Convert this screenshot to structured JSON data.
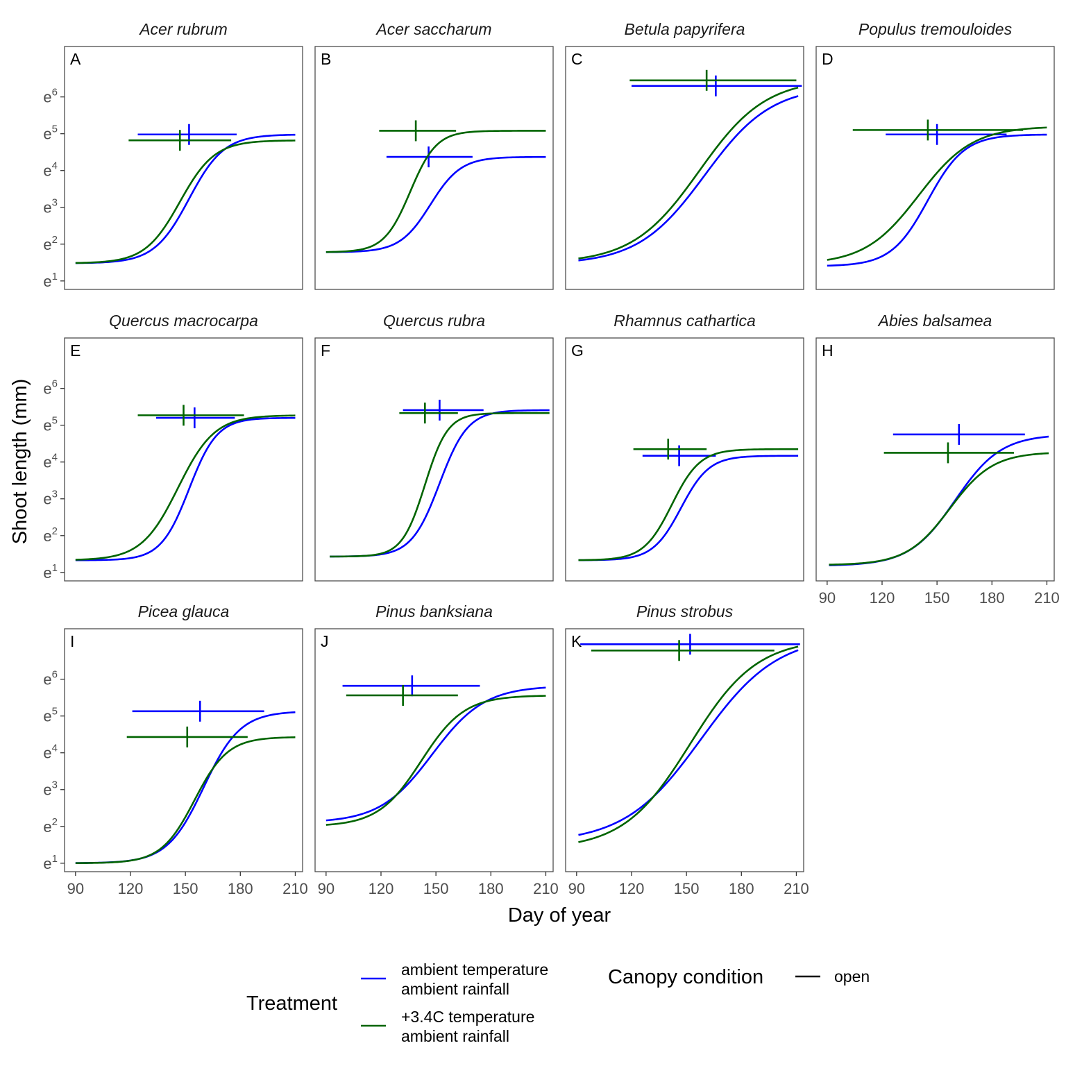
{
  "chart_data": {
    "type": "line",
    "xlabel": "Day of year",
    "ylabel": "Shoot length (mm)",
    "x_ticks": [
      90,
      120,
      150,
      180,
      210
    ],
    "xlim": [
      84,
      214
    ],
    "y_ticks": [
      {
        "base": "e",
        "exp": "1",
        "value": 1
      },
      {
        "base": "e",
        "exp": "2",
        "value": 2
      },
      {
        "base": "e",
        "exp": "3",
        "value": 3
      },
      {
        "base": "e",
        "exp": "4",
        "value": 4
      },
      {
        "base": "e",
        "exp": "5",
        "value": 5
      },
      {
        "base": "e",
        "exp": "6",
        "value": 6
      }
    ],
    "ylim_log": [
      0.77,
      7.37
    ],
    "colors": {
      "ambient": "#0000ff",
      "warm": "#006400"
    },
    "legend": {
      "treatment_title": "Treatment",
      "treatment_items": [
        {
          "key": "ambient",
          "line1": "ambient temperature",
          "line2": "ambient rainfall"
        },
        {
          "key": "warm",
          "line1": "+3.4C temperature",
          "line2": "ambient rainfall"
        }
      ],
      "canopy_title": "Canopy condition",
      "canopy_items": [
        {
          "label": "open",
          "color": "#000000"
        }
      ]
    },
    "panels": [
      {
        "letter": "A",
        "species": "Acer rubrum",
        "show_x_axis": false,
        "series": [
          {
            "key": "ambient",
            "x0": 90,
            "x1": 210,
            "y_start_log": 1.48,
            "y_end_log": 4.98,
            "midpoint": 152,
            "rate": 0.105,
            "mean": 152,
            "xmin": 124,
            "xmax": 178,
            "mean_y_log": 4.98
          },
          {
            "key": "warm",
            "x0": 90,
            "x1": 210,
            "y_start_log": 1.48,
            "y_end_log": 4.82,
            "midpoint": 147,
            "rate": 0.105,
            "mean": 147,
            "xmin": 119,
            "xmax": 175,
            "mean_y_log": 4.82
          }
        ]
      },
      {
        "letter": "B",
        "species": "Acer saccharum",
        "show_x_axis": false,
        "series": [
          {
            "key": "ambient",
            "x0": 90,
            "x1": 210,
            "y_start_log": 1.78,
            "y_end_log": 4.37,
            "midpoint": 147,
            "rate": 0.12,
            "mean": 146,
            "xmin": 123,
            "xmax": 170,
            "mean_y_log": 4.37
          },
          {
            "key": "warm",
            "x0": 90,
            "x1": 210,
            "y_start_log": 1.78,
            "y_end_log": 5.08,
            "midpoint": 136,
            "rate": 0.14,
            "mean": 139,
            "xmin": 119,
            "xmax": 161,
            "mean_y_log": 5.08
          }
        ]
      },
      {
        "letter": "C",
        "species": "Betula papyrifera",
        "show_x_axis": false,
        "series": [
          {
            "key": "ambient",
            "x0": 91,
            "x1": 211,
            "y_start_log": 1.45,
            "y_end_log": 6.3,
            "midpoint": 160,
            "rate": 0.055,
            "mean": 166,
            "xmin": 120,
            "xmax": 213,
            "mean_y_log": 6.3
          },
          {
            "key": "warm",
            "x0": 91,
            "x1": 211,
            "y_start_log": 1.48,
            "y_end_log": 6.5,
            "midpoint": 157,
            "rate": 0.055,
            "mean": 161,
            "xmin": 119,
            "xmax": 210,
            "mean_y_log": 6.45
          }
        ]
      },
      {
        "letter": "D",
        "species": "Populus tremouloides",
        "show_x_axis": false,
        "series": [
          {
            "key": "ambient",
            "x0": 90,
            "x1": 210,
            "y_start_log": 1.4,
            "y_end_log": 4.98,
            "midpoint": 145,
            "rate": 0.1,
            "mean": 150,
            "xmin": 122,
            "xmax": 188,
            "mean_y_log": 4.98
          },
          {
            "key": "warm",
            "x0": 90,
            "x1": 210,
            "y_start_log": 1.45,
            "y_end_log": 5.2,
            "midpoint": 140,
            "rate": 0.068,
            "mean": 145,
            "xmin": 104,
            "xmax": 197,
            "mean_y_log": 5.1
          }
        ]
      },
      {
        "letter": "E",
        "species": "Quercus macrocarpa",
        "show_x_axis": false,
        "series": [
          {
            "key": "ambient",
            "x0": 90,
            "x1": 210,
            "y_start_log": 1.33,
            "y_end_log": 5.2,
            "midpoint": 152,
            "rate": 0.13,
            "mean": 155,
            "xmin": 134,
            "xmax": 177,
            "mean_y_log": 5.2
          },
          {
            "key": "warm",
            "x0": 90,
            "x1": 210,
            "y_start_log": 1.33,
            "y_end_log": 5.27,
            "midpoint": 146,
            "rate": 0.1,
            "mean": 149,
            "xmin": 124,
            "xmax": 182,
            "mean_y_log": 5.27
          }
        ]
      },
      {
        "letter": "F",
        "species": "Quercus rubra",
        "show_x_axis": false,
        "series": [
          {
            "key": "ambient",
            "x0": 92,
            "x1": 212,
            "y_start_log": 1.43,
            "y_end_log": 5.41,
            "midpoint": 152,
            "rate": 0.13,
            "mean": 152,
            "xmin": 132,
            "xmax": 176,
            "mean_y_log": 5.41
          },
          {
            "key": "warm",
            "x0": 92,
            "x1": 212,
            "y_start_log": 1.43,
            "y_end_log": 5.33,
            "midpoint": 144,
            "rate": 0.16,
            "mean": 144,
            "xmin": 130,
            "xmax": 162,
            "mean_y_log": 5.33
          }
        ]
      },
      {
        "letter": "G",
        "species": "Rhamnus cathartica",
        "show_x_axis": false,
        "series": [
          {
            "key": "ambient",
            "x0": 91,
            "x1": 211,
            "y_start_log": 1.33,
            "y_end_log": 4.17,
            "midpoint": 147,
            "rate": 0.13,
            "mean": 146,
            "xmin": 126,
            "xmax": 166,
            "mean_y_log": 4.17
          },
          {
            "key": "warm",
            "x0": 91,
            "x1": 211,
            "y_start_log": 1.33,
            "y_end_log": 4.35,
            "midpoint": 142,
            "rate": 0.13,
            "mean": 140,
            "xmin": 121,
            "xmax": 161,
            "mean_y_log": 4.35
          }
        ]
      },
      {
        "letter": "H",
        "species": "Abies balsamea",
        "show_x_axis": true,
        "series": [
          {
            "key": "ambient",
            "x0": 91,
            "x1": 211,
            "y_start_log": 1.18,
            "y_end_log": 4.75,
            "midpoint": 160,
            "rate": 0.08,
            "mean": 162,
            "xmin": 126,
            "xmax": 198,
            "mean_y_log": 4.75
          },
          {
            "key": "warm",
            "x0": 91,
            "x1": 211,
            "y_start_log": 1.2,
            "y_end_log": 4.27,
            "midpoint": 157,
            "rate": 0.085,
            "mean": 156,
            "xmin": 121,
            "xmax": 192,
            "mean_y_log": 4.25
          }
        ]
      },
      {
        "letter": "I",
        "species": "Picea glauca",
        "show_x_axis": true,
        "series": [
          {
            "key": "ambient",
            "x0": 90,
            "x1": 210,
            "y_start_log": 1.0,
            "y_end_log": 5.13,
            "midpoint": 160,
            "rate": 0.1,
            "mean": 158,
            "xmin": 121,
            "xmax": 193,
            "mean_y_log": 5.13
          },
          {
            "key": "warm",
            "x0": 90,
            "x1": 210,
            "y_start_log": 1.0,
            "y_end_log": 4.43,
            "midpoint": 155,
            "rate": 0.11,
            "mean": 151,
            "xmin": 118,
            "xmax": 184,
            "mean_y_log": 4.43
          }
        ]
      },
      {
        "letter": "J",
        "species": "Pinus banksiana",
        "show_x_axis": true,
        "series": [
          {
            "key": "ambient",
            "x0": 90,
            "x1": 210,
            "y_start_log": 2.1,
            "y_end_log": 5.82,
            "midpoint": 148,
            "rate": 0.07,
            "mean": 137,
            "xmin": 99,
            "xmax": 174,
            "mean_y_log": 5.82
          },
          {
            "key": "warm",
            "x0": 90,
            "x1": 210,
            "y_start_log": 2.0,
            "y_end_log": 5.56,
            "midpoint": 142,
            "rate": 0.085,
            "mean": 132,
            "xmin": 101,
            "xmax": 162,
            "mean_y_log": 5.56
          }
        ]
      },
      {
        "letter": "K",
        "species": "Pinus strobus",
        "show_x_axis": true,
        "series": [
          {
            "key": "ambient",
            "x0": 91,
            "x1": 211,
            "y_start_log": 1.55,
            "y_end_log": 7.2,
            "midpoint": 158,
            "rate": 0.048,
            "mean": 152,
            "xmin": 92,
            "xmax": 212,
            "mean_y_log": 6.95
          },
          {
            "key": "warm",
            "x0": 91,
            "x1": 211,
            "y_start_log": 1.38,
            "y_end_log": 7.1,
            "midpoint": 152,
            "rate": 0.055,
            "mean": 146,
            "xmin": 98,
            "xmax": 198,
            "mean_y_log": 6.78
          }
        ]
      }
    ]
  }
}
